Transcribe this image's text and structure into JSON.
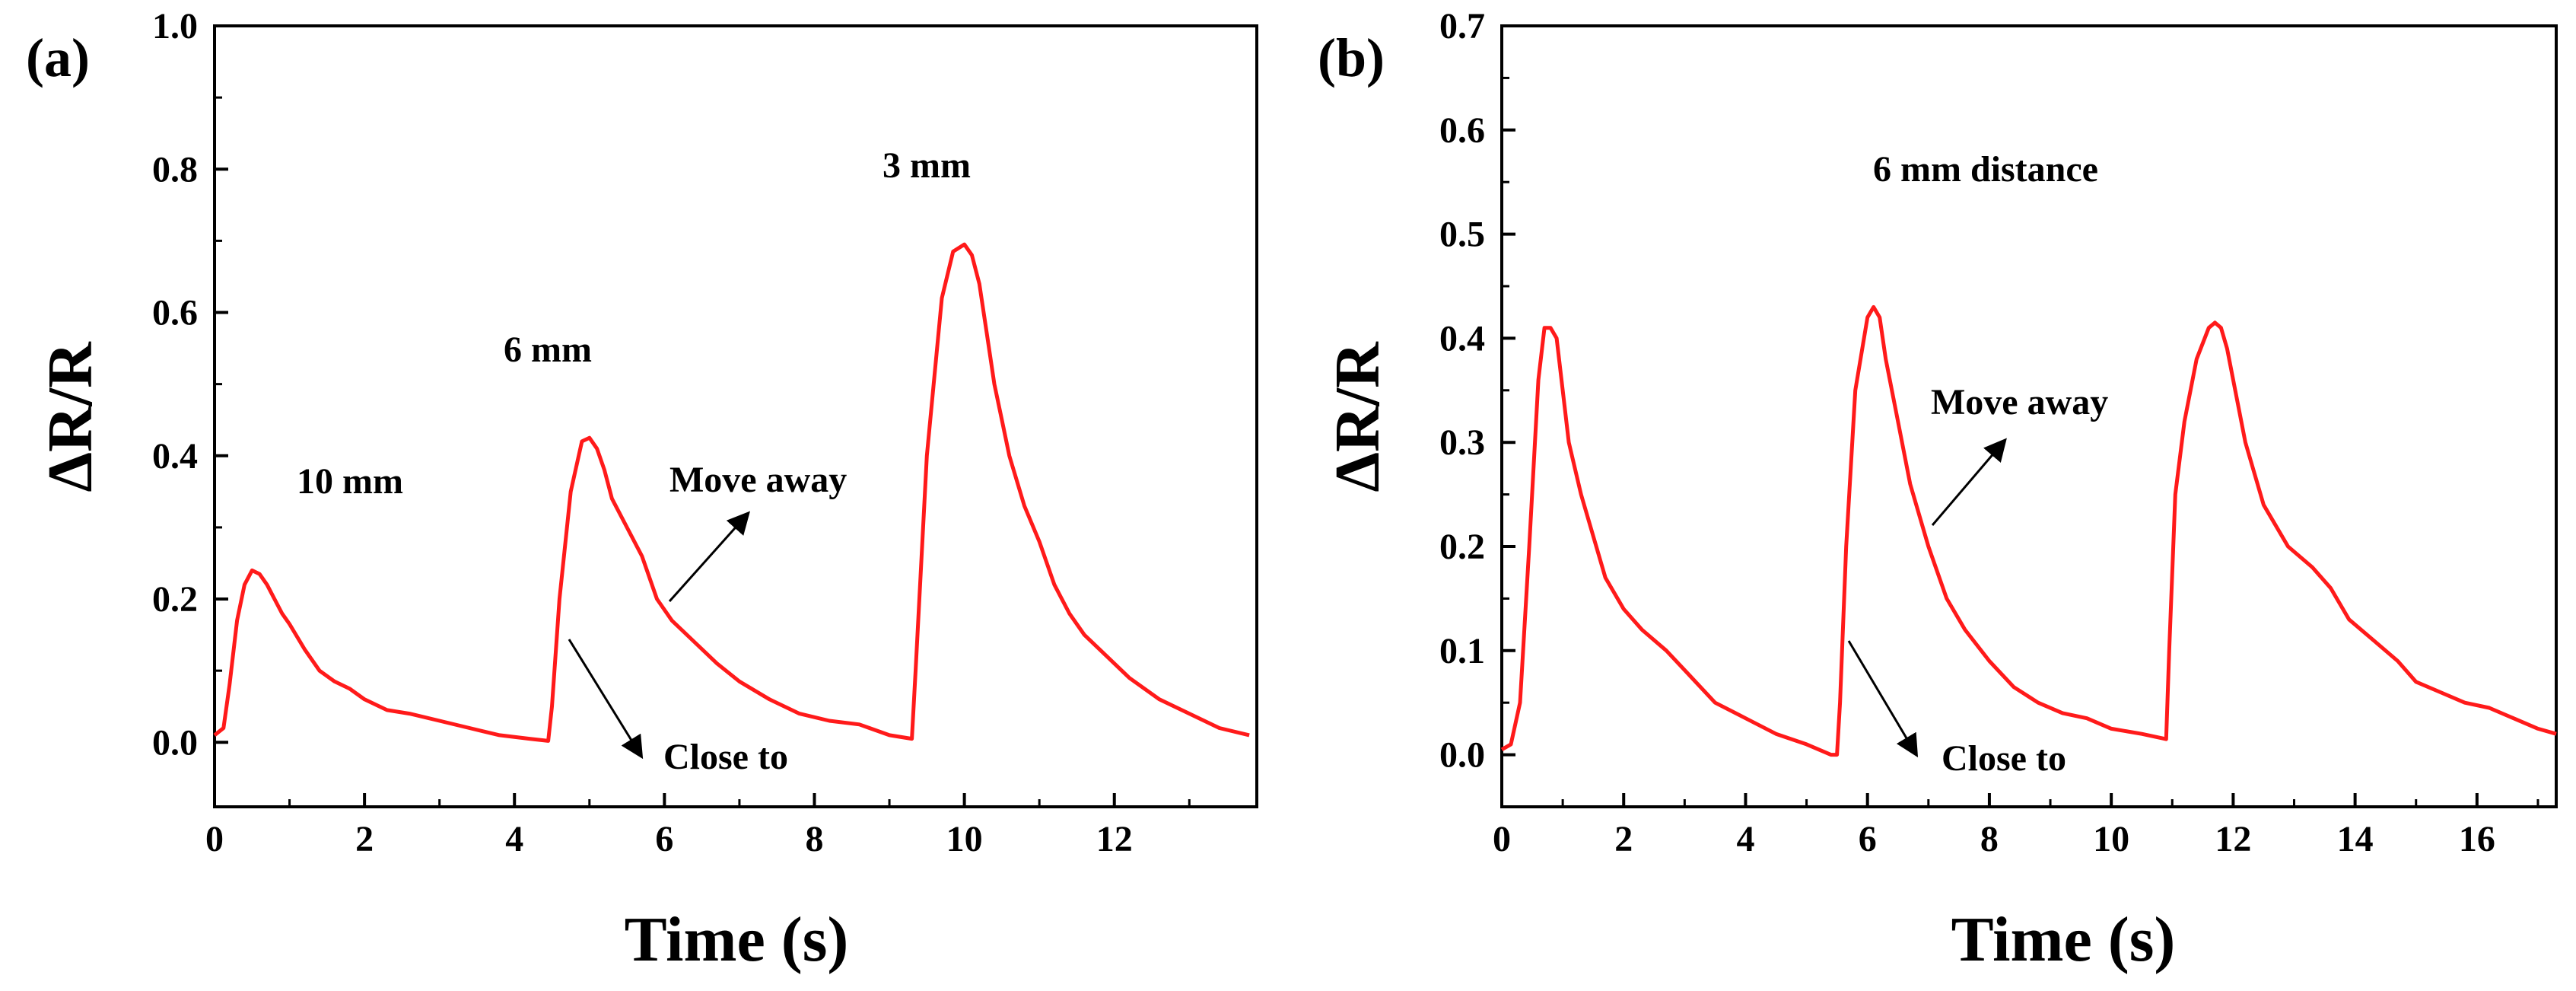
{
  "chart_data": [
    {
      "type": "line",
      "panel_label": "(a)",
      "xlabel": "Time (s)",
      "ylabel": "ΔR/R",
      "xlim": [
        0,
        13.9
      ],
      "ylim": [
        -0.09,
        1.0
      ],
      "xticks": [
        0,
        2,
        4,
        6,
        8,
        10,
        12
      ],
      "yticks": [
        0.0,
        0.2,
        0.4,
        0.6,
        0.8,
        1.0
      ],
      "xtick_labels": [
        "0",
        "2",
        "4",
        "6",
        "8",
        "10",
        "12"
      ],
      "ytick_labels": [
        "0.0",
        "0.2",
        "0.4",
        "0.6",
        "0.8",
        "1.0"
      ],
      "line_color": "#ff1a1a",
      "series": [
        {
          "name": "ΔR/R",
          "x": [
            0,
            0.12,
            0.2,
            0.3,
            0.4,
            0.5,
            0.6,
            0.7,
            0.8,
            0.9,
            1.0,
            1.2,
            1.4,
            1.6,
            1.8,
            2.0,
            2.3,
            2.6,
            3.0,
            3.4,
            3.8,
            4.2,
            4.45,
            4.5,
            4.6,
            4.75,
            4.9,
            5.0,
            5.1,
            5.2,
            5.3,
            5.5,
            5.7,
            5.9,
            6.1,
            6.4,
            6.7,
            7.0,
            7.4,
            7.8,
            8.2,
            8.6,
            9.0,
            9.3,
            9.35,
            9.5,
            9.7,
            9.85,
            10.0,
            10.1,
            10.2,
            10.3,
            10.4,
            10.5,
            10.6,
            10.8,
            11.0,
            11.2,
            11.4,
            11.6,
            11.9,
            12.2,
            12.6,
            13.0,
            13.4,
            13.8
          ],
          "y": [
            0.01,
            0.02,
            0.08,
            0.17,
            0.22,
            0.24,
            0.235,
            0.22,
            0.2,
            0.18,
            0.165,
            0.13,
            0.1,
            0.085,
            0.075,
            0.06,
            0.045,
            0.04,
            0.03,
            0.02,
            0.01,
            0.005,
            0.002,
            0.05,
            0.2,
            0.35,
            0.42,
            0.425,
            0.41,
            0.38,
            0.34,
            0.3,
            0.26,
            0.2,
            0.17,
            0.14,
            0.11,
            0.085,
            0.06,
            0.04,
            0.03,
            0.025,
            0.01,
            0.005,
            0.1,
            0.4,
            0.62,
            0.685,
            0.695,
            0.68,
            0.64,
            0.57,
            0.5,
            0.45,
            0.4,
            0.33,
            0.28,
            0.22,
            0.18,
            0.15,
            0.12,
            0.09,
            0.06,
            0.04,
            0.02,
            0.01
          ]
        }
      ],
      "annotations": {
        "label_10mm": "10 mm",
        "label_6mm": "6 mm",
        "label_3mm": "3 mm",
        "move_away": "Move away",
        "close_to": "Close to"
      }
    },
    {
      "type": "line",
      "panel_label": "(b)",
      "xlabel": "Time (s)",
      "ylabel": "ΔR/R",
      "xlim": [
        0,
        17.3
      ],
      "ylim": [
        -0.05,
        0.7
      ],
      "xticks": [
        0,
        2,
        4,
        6,
        8,
        10,
        12,
        14,
        16
      ],
      "yticks": [
        0.0,
        0.1,
        0.2,
        0.3,
        0.4,
        0.5,
        0.6,
        0.7
      ],
      "xtick_labels": [
        "0",
        "2",
        "4",
        "6",
        "8",
        "10",
        "12",
        "14",
        "16"
      ],
      "ytick_labels": [
        "0.0",
        "0.1",
        "0.2",
        "0.3",
        "0.4",
        "0.5",
        "0.6",
        "0.7"
      ],
      "line_color": "#ff1a1a",
      "series": [
        {
          "name": "ΔR/R",
          "x": [
            0,
            0.15,
            0.3,
            0.45,
            0.6,
            0.7,
            0.8,
            0.9,
            1.0,
            1.1,
            1.3,
            1.5,
            1.7,
            2.0,
            2.3,
            2.7,
            3.1,
            3.5,
            4.0,
            4.5,
            5.0,
            5.4,
            5.5,
            5.55,
            5.65,
            5.8,
            6.0,
            6.1,
            6.2,
            6.3,
            6.5,
            6.7,
            7.0,
            7.3,
            7.6,
            8.0,
            8.4,
            8.8,
            9.2,
            9.6,
            10.0,
            10.5,
            10.9,
            10.95,
            11.05,
            11.2,
            11.4,
            11.6,
            11.7,
            11.8,
            11.9,
            12.0,
            12.2,
            12.5,
            12.9,
            13.3,
            13.6,
            13.9,
            14.3,
            14.7,
            15.0,
            15.4,
            15.8,
            16.2,
            16.6,
            17.0,
            17.3
          ],
          "y": [
            0.005,
            0.01,
            0.05,
            0.2,
            0.36,
            0.41,
            0.41,
            0.4,
            0.35,
            0.3,
            0.25,
            0.21,
            0.17,
            0.14,
            0.12,
            0.1,
            0.075,
            0.05,
            0.035,
            0.02,
            0.01,
            0.0,
            0.0,
            0.05,
            0.2,
            0.35,
            0.42,
            0.43,
            0.42,
            0.38,
            0.32,
            0.26,
            0.2,
            0.15,
            0.12,
            0.09,
            0.065,
            0.05,
            0.04,
            0.035,
            0.025,
            0.02,
            0.015,
            0.1,
            0.25,
            0.32,
            0.38,
            0.41,
            0.415,
            0.41,
            0.39,
            0.36,
            0.3,
            0.24,
            0.2,
            0.18,
            0.16,
            0.13,
            0.11,
            0.09,
            0.07,
            0.06,
            0.05,
            0.045,
            0.035,
            0.025,
            0.02
          ]
        }
      ],
      "annotations": {
        "distance_label": "6 mm distance",
        "move_away": "Move away",
        "close_to": "Close to"
      }
    }
  ]
}
